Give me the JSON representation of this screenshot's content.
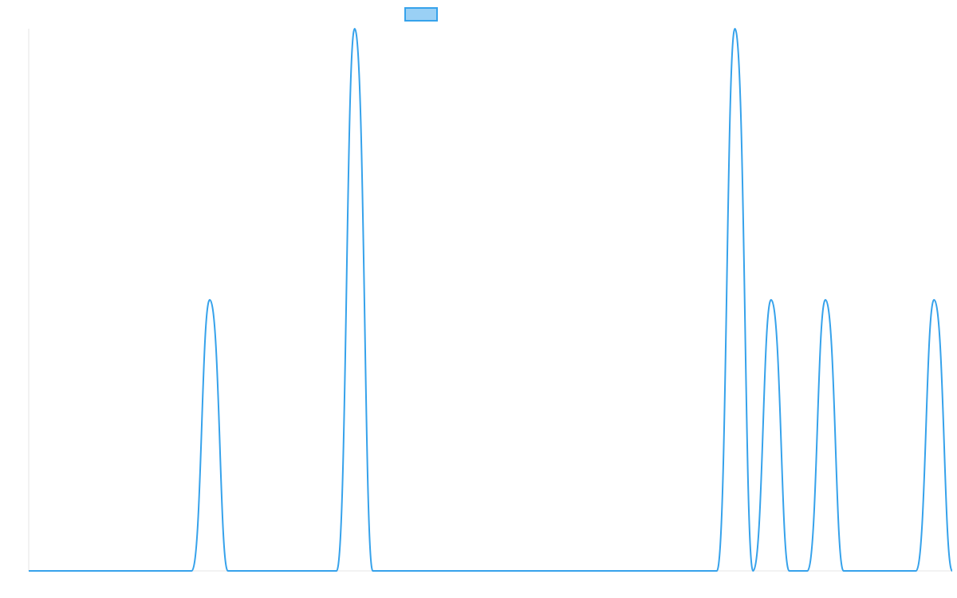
{
  "chart_data": {
    "type": "line",
    "title": "",
    "xlabel": "",
    "ylabel": "",
    "xlim": [
      0,
      51
    ],
    "ylim": [
      0,
      1
    ],
    "grid": false,
    "legend": {
      "placement": "top-center",
      "entries": [
        {
          "label": "",
          "color": "#36a2eb",
          "fill": "#9ad0f5"
        }
      ]
    },
    "series": [
      {
        "color": "#36a2eb",
        "x": [
          0,
          9,
          10,
          11,
          17,
          18,
          19,
          38,
          39,
          40,
          41,
          42,
          43,
          44,
          45,
          46,
          49,
          50,
          51
        ],
        "values": [
          0,
          0,
          0.5,
          0,
          0,
          1,
          0,
          0,
          1,
          0,
          0.5,
          0,
          0,
          0.5,
          0,
          0,
          0,
          0.5,
          0
        ]
      }
    ]
  }
}
